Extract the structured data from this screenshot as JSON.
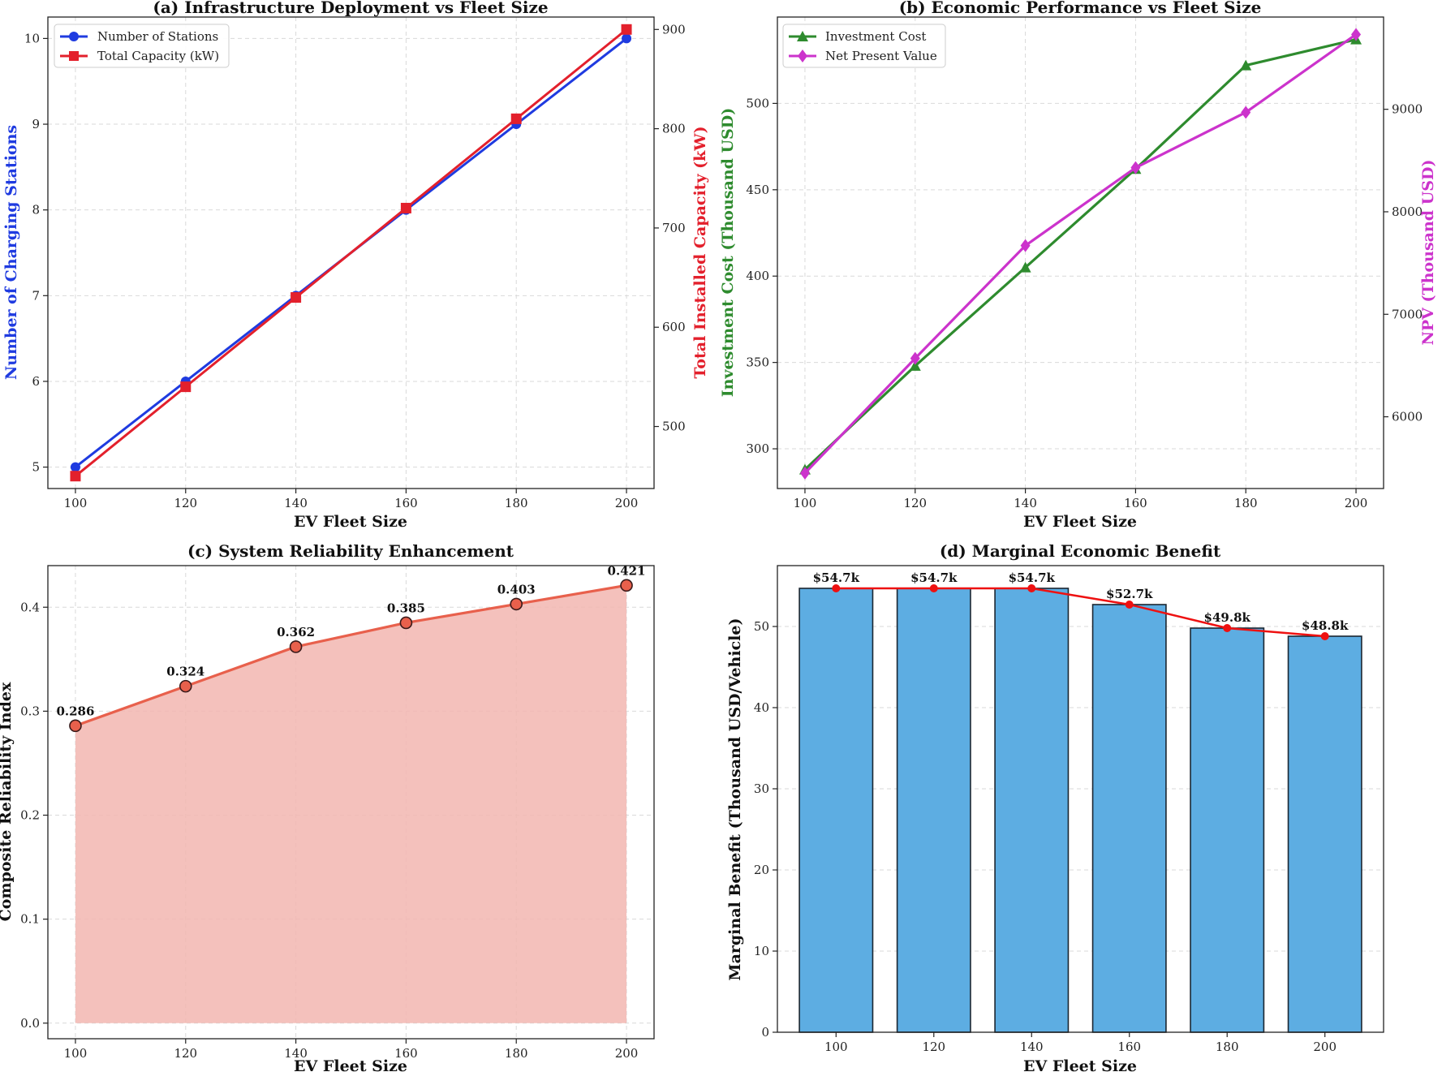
{
  "colors": {
    "stations": "#1f3be0",
    "capacity": "#e3202c",
    "investment": "#2e8b2e",
    "npv": "#cc33cc",
    "reliability_line": "#e8604c",
    "reliability_fill": "#f2b6b0",
    "bar": "#5dade2",
    "marginal_line": "#ee1111"
  },
  "chart_data": [
    {
      "id": "a",
      "type": "line",
      "title": "(a) Infrastructure Deployment vs Fleet Size",
      "xlabel": "EV Fleet Size",
      "ylabel": "Number of Charging Stations",
      "ylabel_right": "Total Installed Capacity (kW)",
      "x": [
        100,
        120,
        140,
        160,
        180,
        200
      ],
      "xlim": [
        95,
        205
      ],
      "ylim": [
        4.75,
        10.25
      ],
      "ylim_right": [
        437.5,
        912.5
      ],
      "yticks": [
        5,
        6,
        7,
        8,
        9,
        10
      ],
      "yticks_right": [
        500,
        600,
        700,
        800,
        900
      ],
      "legend_position": "upper-left",
      "series": [
        {
          "name": "Number of Stations",
          "axis": "left",
          "marker": "circle",
          "values": [
            5,
            6,
            7,
            8,
            9,
            10
          ]
        },
        {
          "name": "Total Capacity (kW)",
          "axis": "right",
          "marker": "square",
          "values": [
            450,
            540,
            630,
            720,
            810,
            900
          ]
        }
      ]
    },
    {
      "id": "b",
      "type": "line",
      "title": "(b) Economic Performance vs Fleet Size",
      "xlabel": "EV Fleet Size",
      "ylabel": "Investment Cost (Thousand USD)",
      "ylabel_right": "NPV (Thousand USD)",
      "x": [
        100,
        120,
        140,
        160,
        180,
        200
      ],
      "xlim": [
        95,
        205
      ],
      "ylim": [
        277,
        550
      ],
      "ylim_right": [
        5300,
        9900
      ],
      "yticks": [
        300,
        350,
        400,
        450,
        500
      ],
      "yticks_right": [
        6000,
        7000,
        8000,
        9000
      ],
      "legend_position": "upper-left",
      "series": [
        {
          "name": "Investment Cost",
          "axis": "left",
          "marker": "triangle",
          "values": [
            288,
            348,
            405,
            462,
            522,
            537
          ]
        },
        {
          "name": "Net Present Value",
          "axis": "right",
          "marker": "diamond",
          "values": [
            5450,
            6570,
            7670,
            8430,
            8970,
            9730
          ]
        }
      ]
    },
    {
      "id": "c",
      "type": "area",
      "title": "(c) System Reliability Enhancement",
      "xlabel": "EV Fleet Size",
      "ylabel": "Composite Reliability Index",
      "x": [
        100,
        120,
        140,
        160,
        180,
        200
      ],
      "xlim": [
        95,
        205
      ],
      "ylim": [
        -0.015,
        0.44
      ],
      "yticks": [
        0.0,
        0.1,
        0.2,
        0.3,
        0.4
      ],
      "values": [
        0.286,
        0.324,
        0.362,
        0.385,
        0.403,
        0.421
      ],
      "data_labels": [
        "0.286",
        "0.324",
        "0.362",
        "0.385",
        "0.403",
        "0.421"
      ]
    },
    {
      "id": "d",
      "type": "bar",
      "title": "(d) Marginal Economic Benefit",
      "xlabel": "EV Fleet Size",
      "ylabel": "Marginal Benefit (Thousand USD/Vehicle)",
      "categories": [
        "100",
        "120",
        "140",
        "160",
        "180",
        "200"
      ],
      "values": [
        54.7,
        54.7,
        54.7,
        52.7,
        49.8,
        48.8
      ],
      "data_labels": [
        "$54.7k",
        "$54.7k",
        "$54.7k",
        "$52.7k",
        "$49.8k",
        "$48.8k"
      ],
      "ylim": [
        0,
        57.5
      ],
      "yticks": [
        0,
        10,
        20,
        30,
        40,
        50
      ]
    }
  ]
}
